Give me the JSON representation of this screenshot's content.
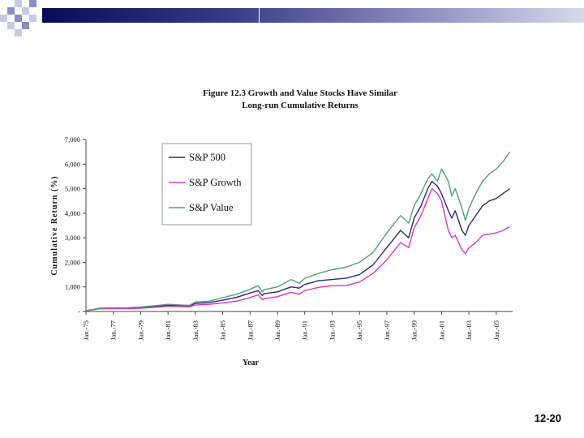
{
  "slide": {
    "page_number": "12-20",
    "colors": {
      "header_dark": "#0a0a5a",
      "header_light": "#d8d8ec",
      "deco_square": "#8c8cc8"
    }
  },
  "chart_data": {
    "type": "line",
    "title_line1": "Figure 12.3 Growth and Value Stocks Have Similar",
    "title_line2": "Long-run Cumulative Returns",
    "xlabel": "Year",
    "ylabel": "Cumulative Return (%)",
    "ylim": [
      0,
      7000
    ],
    "yticks": [
      0,
      1000,
      2000,
      3000,
      4000,
      5000,
      6000,
      7000
    ],
    "ytick_labels": [
      "-",
      "1,000",
      "2,000",
      "3,000",
      "4,000",
      "5,000",
      "6,000",
      "7,000"
    ],
    "xlim": [
      1975.0,
      2006.2
    ],
    "xticks": [
      1975,
      1977,
      1979,
      1981,
      1983,
      1985,
      1987,
      1989,
      1991,
      1993,
      1995,
      1997,
      1999,
      2001,
      2003,
      2005
    ],
    "xtick_labels": [
      "Jan.-75",
      "Jan.-77",
      "Jan.-79",
      "Jan.-81",
      "Jan.-83",
      "Jan.-85",
      "Jan.-87",
      "Jan.-89",
      "Jan.-91",
      "Jan.-93",
      "Jan.-95",
      "Jan.-97",
      "Jan.-99",
      "Jan.-01",
      "Jan.-03",
      "Jan.-05"
    ],
    "legend_position": "top-left",
    "x": [
      1975.0,
      1976.0,
      1977.0,
      1978.0,
      1979.0,
      1980.0,
      1981.0,
      1982.0,
      1982.6,
      1983.0,
      1984.0,
      1985.0,
      1986.0,
      1987.0,
      1987.6,
      1987.9,
      1988.0,
      1989.0,
      1990.0,
      1990.6,
      1991.0,
      1992.0,
      1993.0,
      1994.0,
      1995.0,
      1996.0,
      1997.0,
      1998.0,
      1998.6,
      1999.0,
      1999.5,
      2000.0,
      2000.3,
      2000.7,
      2001.0,
      2001.5,
      2001.75,
      2002.0,
      2002.5,
      2002.75,
      2003.0,
      2003.5,
      2004.0,
      2004.5,
      2005.0,
      2005.5,
      2006.0
    ],
    "series": [
      {
        "name": "S&P 500",
        "color": "#2b2b72",
        "values": [
          30,
          120,
          130,
          130,
          160,
          200,
          250,
          230,
          220,
          330,
          360,
          460,
          570,
          750,
          850,
          650,
          720,
          800,
          1000,
          950,
          1100,
          1250,
          1300,
          1350,
          1500,
          1900,
          2600,
          3300,
          3000,
          3800,
          4300,
          5000,
          5300,
          5100,
          4800,
          4100,
          3800,
          4100,
          3300,
          3100,
          3500,
          3900,
          4300,
          4500,
          4600,
          4800,
          5000
        ]
      },
      {
        "name": "S&P Growth",
        "color": "#e030d0",
        "values": [
          30,
          110,
          110,
          110,
          130,
          170,
          210,
          200,
          190,
          260,
          290,
          350,
          420,
          560,
          680,
          480,
          520,
          600,
          780,
          700,
          850,
          980,
          1050,
          1050,
          1200,
          1550,
          2100,
          2800,
          2600,
          3400,
          3900,
          4600,
          5000,
          4800,
          4500,
          3300,
          3000,
          3100,
          2500,
          2350,
          2600,
          2800,
          3100,
          3150,
          3200,
          3300,
          3450
        ]
      },
      {
        "name": "S&P Value",
        "color": "#4ca07c",
        "values": [
          30,
          140,
          150,
          150,
          180,
          230,
          290,
          260,
          250,
          390,
          420,
          560,
          700,
          900,
          1050,
          800,
          880,
          1000,
          1300,
          1150,
          1350,
          1550,
          1700,
          1800,
          2000,
          2400,
          3200,
          3900,
          3600,
          4300,
          4800,
          5400,
          5600,
          5300,
          5800,
          5300,
          4700,
          5000,
          4200,
          3700,
          4200,
          4800,
          5300,
          5600,
          5800,
          6100,
          6500
        ]
      }
    ]
  }
}
